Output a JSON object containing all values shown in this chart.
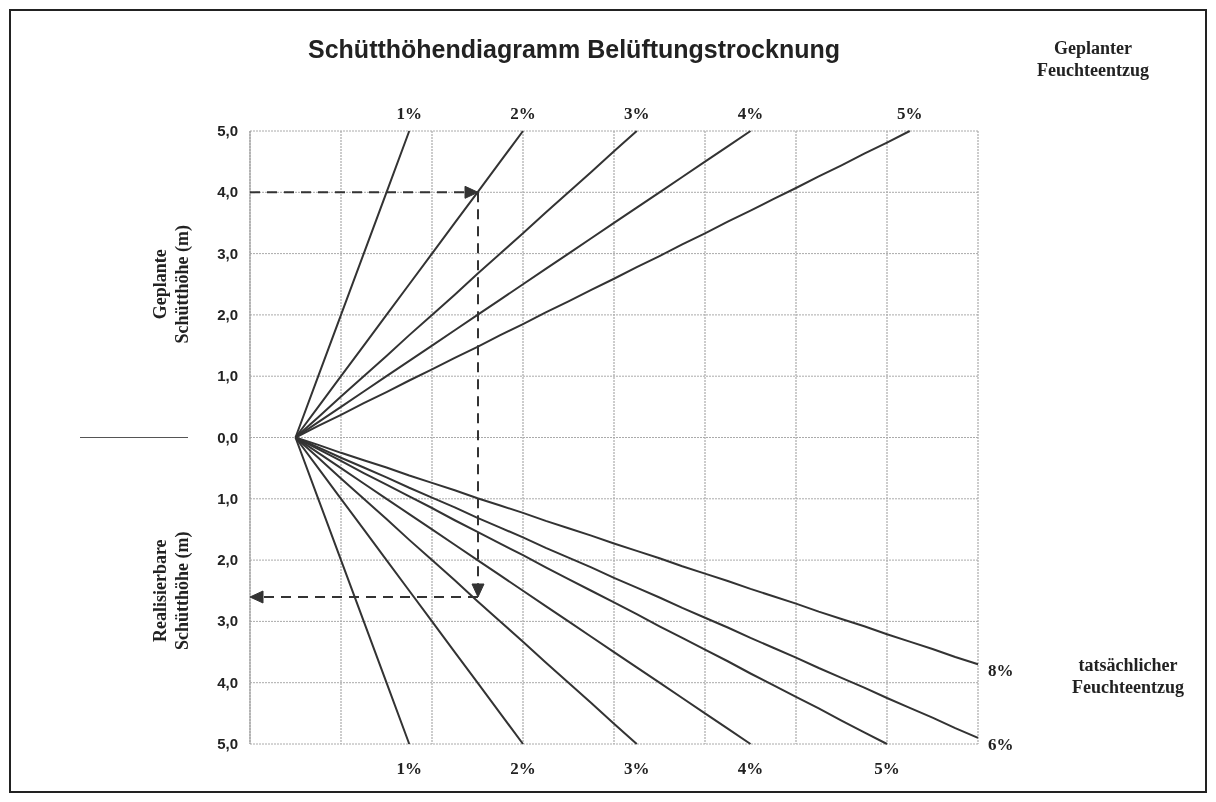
{
  "chart_data": {
    "type": "line",
    "title": "Schütthöhendiagramm Belüftungstrocknung",
    "ylabel": "Geplante Schütthöhe (m)",
    "annotations": [
      "Realisierbare Schütthöhe (m)",
      "Geplanter Feuchteentzug",
      "tatsächlicher Feuchteentzug"
    ],
    "categories": [
      null,
      null,
      null,
      null,
      null,
      null,
      null,
      null,
      null,
      null,
      null,
      null,
      null,
      null,
      null,
      null,
      null,
      null,
      null,
      null,
      null,
      null,
      null,
      null,
      null,
      null,
      null,
      null,
      null,
      null,
      null,
      null,
      null
    ],
    "ylim": [
      -5,
      5
    ],
    "yticks": [
      {
        "value": 5,
        "label": "5,0"
      },
      {
        "value": 4,
        "label": "4,0"
      },
      {
        "value": 3,
        "label": "3,0"
      },
      {
        "value": 2,
        "label": "2,0"
      },
      {
        "value": 1,
        "label": "1,0"
      },
      {
        "value": 0,
        "label": "0,0"
      },
      {
        "value": -1,
        "label": "1,0"
      },
      {
        "value": -2,
        "label": "2,0"
      },
      {
        "value": -3,
        "label": "3,0"
      },
      {
        "value": -4,
        "label": "4,0"
      },
      {
        "value": -5,
        "label": "5,0"
      }
    ],
    "grid": true,
    "series": [
      {
        "name": "1%",
        "color": "#333333",
        "values": [
          null,
          null,
          0,
          1,
          2,
          3,
          4,
          5,
          null,
          null,
          null,
          null,
          null,
          null,
          null,
          null,
          null,
          null,
          null,
          null,
          null,
          null,
          null,
          null,
          null,
          null,
          null,
          null,
          null,
          null,
          null,
          null,
          null
        ]
      },
      {
        "name": "2%",
        "color": "#333333",
        "values": [
          null,
          null,
          0,
          0.5,
          1,
          1.5,
          2,
          2.5,
          3,
          3.5,
          4,
          4.5,
          5,
          null,
          null,
          null,
          null,
          null,
          null,
          null,
          null,
          null,
          null,
          null,
          null,
          null,
          null,
          null,
          null,
          null,
          null,
          null,
          null
        ]
      },
      {
        "name": "3%",
        "color": "#333333",
        "values": [
          null,
          null,
          0,
          0.33,
          0.67,
          1,
          1.33,
          1.67,
          2,
          2.33,
          2.67,
          3,
          3.33,
          3.67,
          4,
          4.33,
          4.67,
          5,
          null,
          null,
          null,
          null,
          null,
          null,
          null,
          null,
          null,
          null,
          null,
          null,
          null,
          null,
          null
        ]
      },
      {
        "name": "4%",
        "color": "#333333",
        "values": [
          null,
          null,
          0,
          0.25,
          0.5,
          0.75,
          1,
          1.25,
          1.5,
          1.75,
          2,
          2.25,
          2.5,
          2.75,
          3,
          3.25,
          3.5,
          3.75,
          4,
          4.25,
          4.5,
          4.75,
          5,
          null,
          null,
          null,
          null,
          null,
          null,
          null,
          null,
          null,
          null
        ]
      },
      {
        "name": "5%",
        "color": "#333333",
        "values": [
          null,
          null,
          0,
          0.19,
          0.37,
          0.56,
          0.74,
          0.93,
          1.11,
          1.3,
          1.48,
          1.67,
          1.85,
          2.04,
          2.22,
          2.41,
          2.59,
          2.78,
          2.96,
          3.15,
          3.33,
          3.52,
          3.7,
          3.89,
          4.07,
          4.26,
          4.44,
          4.63,
          4.81,
          5,
          null,
          null,
          null
        ]
      },
      {
        "name": "1%",
        "color": "#333333",
        "values": [
          null,
          null,
          0,
          -1,
          -2,
          -3,
          -4,
          -5,
          null,
          null,
          null,
          null,
          null,
          null,
          null,
          null,
          null,
          null,
          null,
          null,
          null,
          null,
          null,
          null,
          null,
          null,
          null,
          null,
          null,
          null,
          null,
          null,
          null
        ]
      },
      {
        "name": "2%",
        "color": "#333333",
        "values": [
          null,
          null,
          0,
          -0.5,
          -1,
          -1.5,
          -2,
          -2.5,
          -3,
          -3.5,
          -4,
          -4.5,
          -5,
          null,
          null,
          null,
          null,
          null,
          null,
          null,
          null,
          null,
          null,
          null,
          null,
          null,
          null,
          null,
          null,
          null,
          null,
          null,
          null
        ]
      },
      {
        "name": "3%",
        "color": "#333333",
        "values": [
          null,
          null,
          0,
          -0.33,
          -0.67,
          -1,
          -1.33,
          -1.67,
          -2,
          -2.33,
          -2.67,
          -3,
          -3.33,
          -3.67,
          -4,
          -4.33,
          -4.67,
          -5,
          null,
          null,
          null,
          null,
          null,
          null,
          null,
          null,
          null,
          null,
          null,
          null,
          null,
          null,
          null
        ]
      },
      {
        "name": "4%",
        "color": "#333333",
        "values": [
          null,
          null,
          0,
          -0.25,
          -0.5,
          -0.75,
          -1,
          -1.25,
          -1.5,
          -1.75,
          -2,
          -2.25,
          -2.5,
          -2.75,
          -3,
          -3.25,
          -3.5,
          -3.75,
          -4,
          -4.25,
          -4.5,
          -4.75,
          -5,
          null,
          null,
          null,
          null,
          null,
          null,
          null,
          null,
          null,
          null
        ]
      },
      {
        "name": "5%",
        "color": "#333333",
        "values": [
          null,
          null,
          0,
          -0.19,
          -0.38,
          -0.58,
          -0.77,
          -0.96,
          -1.15,
          -1.35,
          -1.54,
          -1.73,
          -1.92,
          -2.12,
          -2.31,
          -2.5,
          -2.69,
          -2.88,
          -3.08,
          -3.27,
          -3.46,
          -3.65,
          -3.85,
          -4.04,
          -4.23,
          -4.42,
          -4.62,
          -4.81,
          -5,
          null,
          null,
          null,
          null
        ]
      },
      {
        "name": "6%",
        "color": "#333333",
        "values": [
          null,
          null,
          0,
          -0.16,
          -0.33,
          -0.49,
          -0.65,
          -0.82,
          -0.98,
          -1.14,
          -1.31,
          -1.47,
          -1.63,
          -1.8,
          -1.96,
          -2.12,
          -2.29,
          -2.45,
          -2.61,
          -2.78,
          -2.94,
          -3.1,
          -3.27,
          -3.43,
          -3.59,
          -3.76,
          -3.92,
          -4.08,
          -4.25,
          -4.41,
          -4.57,
          -4.74,
          -4.9
        ]
      },
      {
        "name": "8%",
        "color": "#333333",
        "values": [
          null,
          null,
          0,
          -0.12,
          -0.25,
          -0.37,
          -0.49,
          -0.62,
          -0.74,
          -0.86,
          -0.99,
          -1.11,
          -1.23,
          -1.36,
          -1.48,
          -1.6,
          -1.73,
          -1.85,
          -1.97,
          -2.1,
          -2.22,
          -2.34,
          -2.47,
          -2.59,
          -2.71,
          -2.84,
          -2.96,
          -3.08,
          -3.21,
          -3.33,
          -3.45,
          -3.58,
          -3.7
        ]
      }
    ]
  }
}
